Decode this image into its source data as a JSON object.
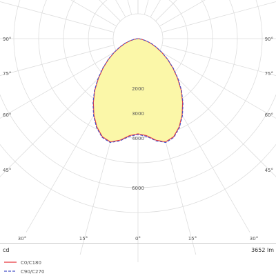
{
  "chart_data": {
    "type": "polar-luminous-intensity",
    "unit_label": "cd",
    "flux_label": "3652 lm",
    "radial_max": 7000,
    "radial_ticks": [
      {
        "value": 2000,
        "label": "2000"
      },
      {
        "value": 3000,
        "label": "3000"
      },
      {
        "value": 4000,
        "label": "4000"
      },
      {
        "value": 6000,
        "label": "6000"
      }
    ],
    "angle_labels": [
      {
        "angle": 90,
        "label": "90°"
      },
      {
        "angle": 75,
        "label": "75°"
      },
      {
        "angle": 60,
        "label": "60°"
      },
      {
        "angle": 45,
        "label": "45°"
      },
      {
        "angle": 30,
        "label": "30°"
      },
      {
        "angle": 15,
        "label": "15°"
      },
      {
        "angle": 0,
        "label": "0°"
      }
    ],
    "fill_color": "#fbf7a8",
    "series": [
      {
        "name": "C0/C180",
        "color": "#e8383d",
        "style": "solid",
        "angles": [
          0,
          5,
          10,
          15,
          20,
          25,
          30,
          35,
          40,
          45,
          50,
          55,
          60,
          65,
          70,
          75,
          80,
          85,
          90
        ],
        "values": [
          3830,
          3920,
          4150,
          4300,
          4200,
          3920,
          3550,
          3130,
          2700,
          2250,
          1830,
          1450,
          1100,
          800,
          550,
          330,
          150,
          30,
          0
        ]
      },
      {
        "name": "C90/C270",
        "color": "#4a55c8",
        "style": "dashed",
        "angles": [
          0,
          5,
          10,
          15,
          20,
          25,
          30,
          35,
          40,
          45,
          50,
          55,
          60,
          65,
          70,
          75,
          80,
          85,
          90
        ],
        "values": [
          3860,
          3950,
          4180,
          4330,
          4230,
          3950,
          3580,
          3160,
          2730,
          2280,
          1860,
          1470,
          1120,
          820,
          570,
          340,
          160,
          35,
          0
        ]
      }
    ]
  }
}
